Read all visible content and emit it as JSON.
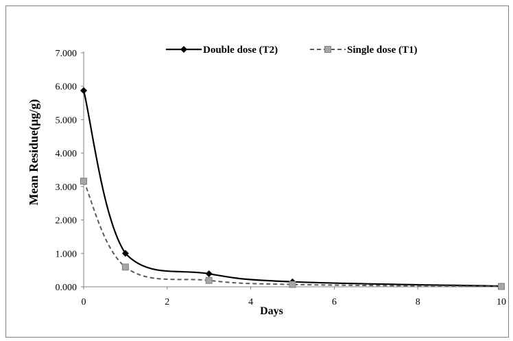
{
  "chart_data": {
    "type": "line",
    "title": "",
    "xlabel": "Days",
    "ylabel": "Mean Residue(µg/g)",
    "xlim": [
      0,
      10
    ],
    "ylim": [
      0,
      7
    ],
    "x_ticks": [
      "0",
      "2",
      "4",
      "6",
      "8",
      "10"
    ],
    "y_ticks": [
      "0.000",
      "1.000",
      "2.000",
      "3.000",
      "4.000",
      "5.000",
      "6.000",
      "7.000"
    ],
    "grid": false,
    "legend_position": "top",
    "series": [
      {
        "name": "Double dose (T2)",
        "color": "#000000",
        "line_style": "solid",
        "marker": "diamond",
        "x": [
          0,
          1,
          3,
          5,
          10
        ],
        "y": [
          5.87,
          1.0,
          0.39,
          0.15,
          0.02
        ]
      },
      {
        "name": "Single dose (T1)",
        "color": "#595959",
        "line_style": "dashed",
        "marker": "square",
        "x": [
          0,
          1,
          3,
          5,
          10
        ],
        "y": [
          3.16,
          0.59,
          0.19,
          0.07,
          0.01
        ]
      }
    ]
  }
}
